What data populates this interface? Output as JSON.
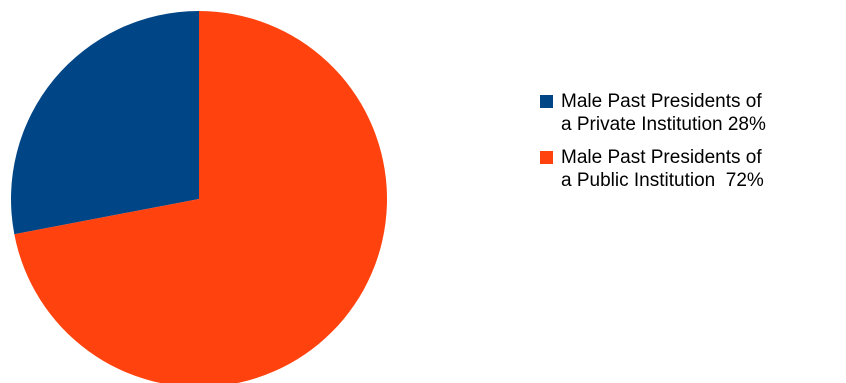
{
  "chart_data": {
    "type": "pie",
    "title": "",
    "legend_position": "right",
    "slices": [
      {
        "label": "Male Past Presidents of a Private Institution 28%",
        "label_lines": [
          "Male Past Presidents of",
          "a Private Institution 28%"
        ],
        "value": 28,
        "color": "#004586"
      },
      {
        "label": "Male Past Presidents of a Public Institution 72%",
        "label_lines": [
          "Male Past Presidents of",
          "a Public Institution  72%"
        ],
        "value": 72,
        "color": "#ff420e"
      }
    ]
  }
}
